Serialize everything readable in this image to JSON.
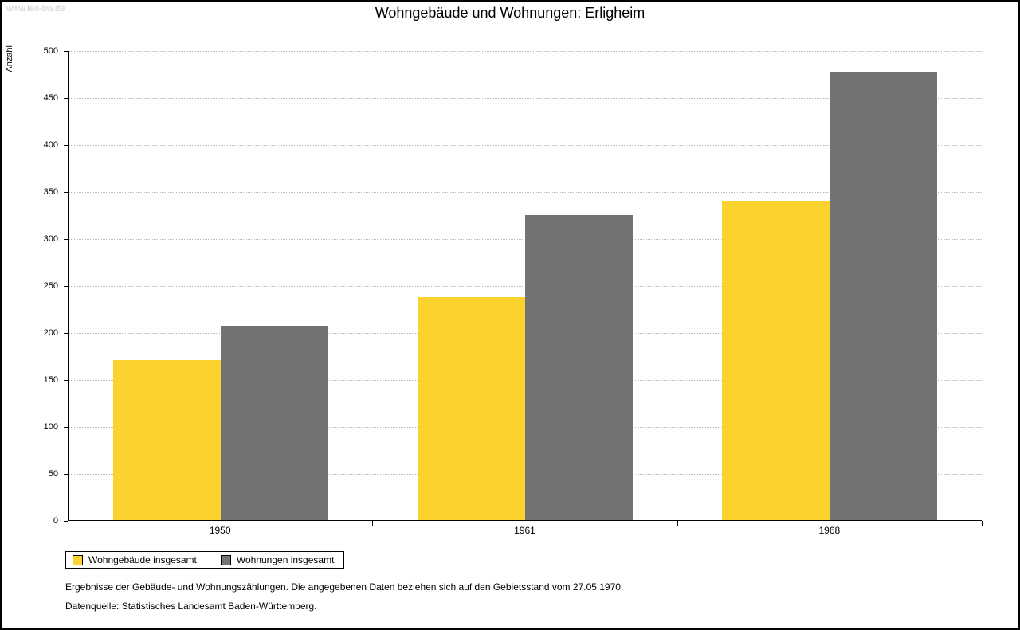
{
  "watermark": "www.leo-bw.de",
  "title": "Wohngebäude und Wohnungen: Erligheim",
  "chart_data": {
    "type": "bar",
    "title": "Wohngebäude und Wohnungen: Erligheim",
    "categories": [
      "1950",
      "1961",
      "1968"
    ],
    "series": [
      {
        "key": "wohngebaeude-insgesamt",
        "name": "Wohngebäude insgesamt",
        "color": "#FCD22E",
        "values": [
          171,
          238,
          340
        ]
      },
      {
        "key": "wohnungen-insgesamt",
        "name": "Wohnungen insgesamt",
        "color": "#737373",
        "values": [
          207,
          325,
          478
        ]
      }
    ],
    "xlabel": "",
    "ylabel": "Anzahl",
    "ylim": [
      0,
      500
    ],
    "ytick_step": 50,
    "grid": "horizontal-dotted",
    "legend_position": "bottom-left"
  },
  "footnotes": [
    "Ergebnisse der Gebäude- und Wohnungszählungen. Die angegebenen Daten beziehen sich auf den Gebietsstand vom 27.05.1970.",
    "Datenquelle: Statistisches Landesamt Baden-Württemberg."
  ]
}
